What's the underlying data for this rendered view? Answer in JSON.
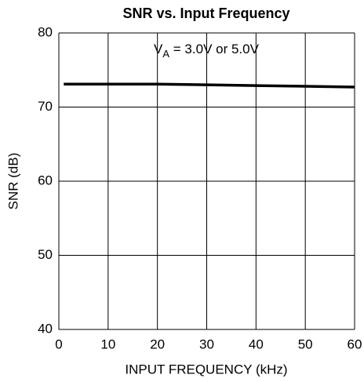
{
  "chart_data": {
    "type": "line",
    "title": "SNR vs. Input Frequency",
    "x_label": "INPUT FREQUENCY (kHz)",
    "y_label": "SNR (dB)",
    "annotation": [
      "V",
      "A",
      " = 3.0V or 5.0V"
    ],
    "x": [
      1,
      10,
      20,
      30,
      40,
      50,
      60
    ],
    "series": [
      {
        "name": "SNR",
        "color": "#000000",
        "values": [
          73.1,
          73.1,
          73.1,
          73.0,
          72.9,
          72.8,
          72.7
        ]
      }
    ],
    "xlim": [
      0,
      60
    ],
    "xticks": [
      0,
      10,
      20,
      30,
      40,
      50,
      60
    ],
    "ylim": [
      40,
      80
    ],
    "yticks": [
      40,
      50,
      60,
      70,
      80
    ],
    "grid": true
  }
}
